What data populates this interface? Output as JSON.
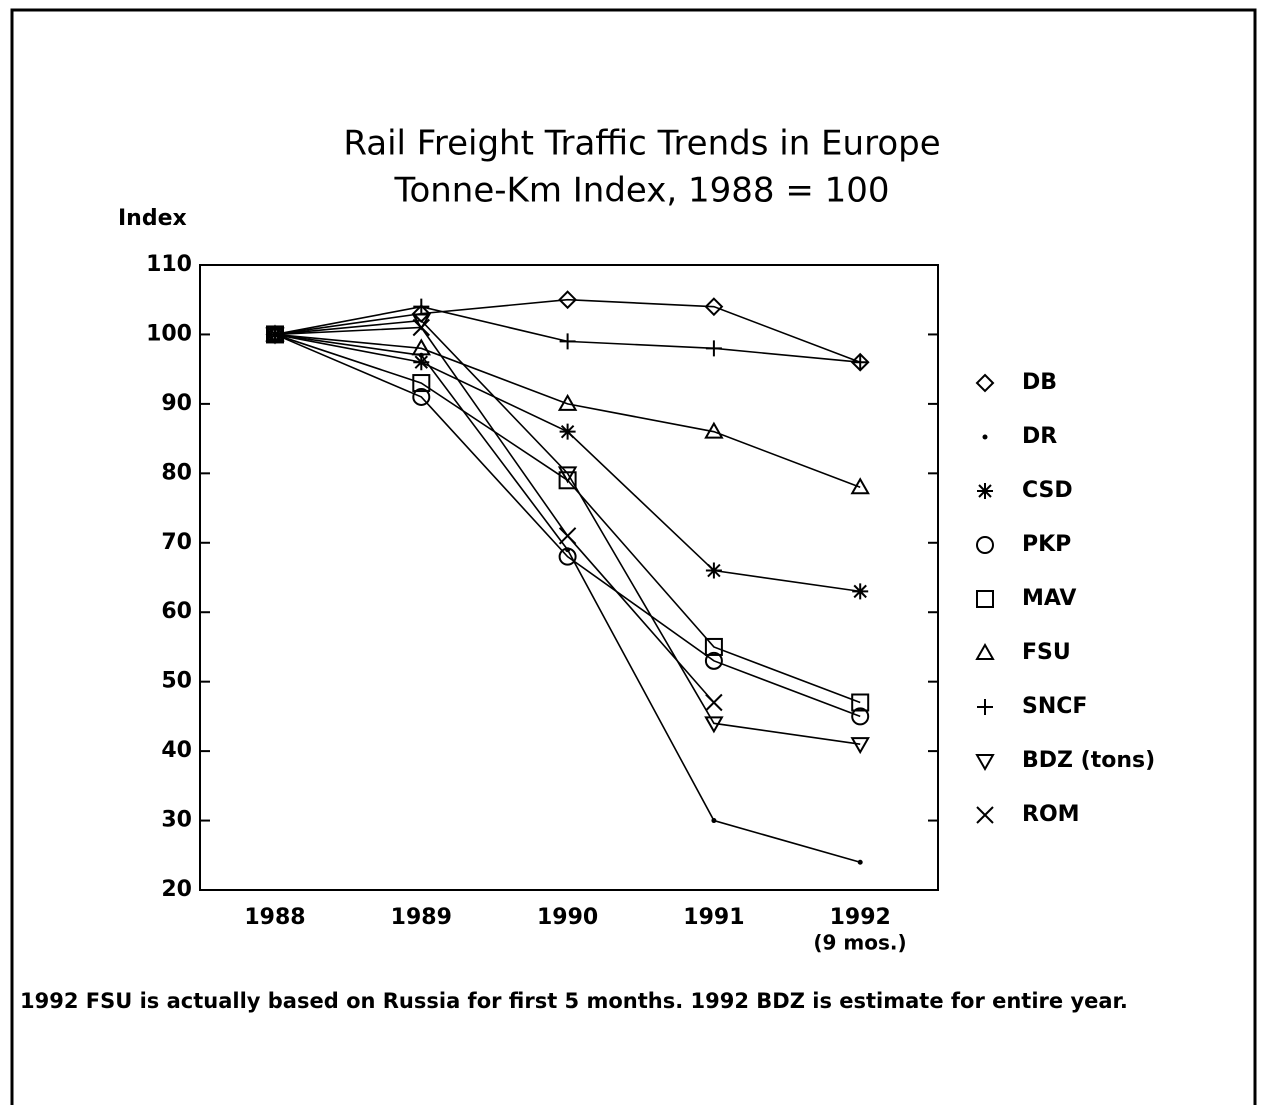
{
  "chart_data": {
    "type": "line",
    "title": "Rail Freight Traffic Trends in Europe",
    "subtitle": "Tonne-Km Index, 1988 = 100",
    "y_label": "Index",
    "categories": [
      "1988",
      "1989",
      "1990",
      "1991",
      "1992"
    ],
    "x_annotation": "(9 mos.)",
    "footnote": "1992 FSU is actually based on Russia for first 5 months.  1992 BDZ is estimate for entire year.",
    "ylim": [
      20,
      110
    ],
    "yticks": [
      20,
      30,
      40,
      50,
      60,
      70,
      80,
      90,
      100,
      110
    ],
    "series": [
      {
        "name": "DB",
        "color": "#000000",
        "marker": "diamond",
        "values": [
          100,
          103,
          105,
          104,
          96
        ]
      },
      {
        "name": "DR",
        "color": "#000000",
        "marker": "dot",
        "values": [
          100,
          97,
          69,
          30,
          24
        ]
      },
      {
        "name": "CSD",
        "color": "#000000",
        "marker": "asterisk",
        "values": [
          100,
          96,
          86,
          66,
          63
        ]
      },
      {
        "name": "PKP",
        "color": "#000000",
        "marker": "circle",
        "values": [
          100,
          91,
          68,
          53,
          45
        ]
      },
      {
        "name": "MAV",
        "color": "#000000",
        "marker": "square",
        "values": [
          100,
          93,
          79,
          55,
          47
        ]
      },
      {
        "name": "FSU",
        "color": "#000000",
        "marker": "triangle",
        "values": [
          100,
          98,
          90,
          86,
          78
        ]
      },
      {
        "name": "SNCF",
        "color": "#000000",
        "marker": "plus",
        "values": [
          100,
          104,
          99,
          98,
          96
        ]
      },
      {
        "name": "BDZ (tons)",
        "color": "#000000",
        "marker": "triangle-down",
        "values": [
          100,
          102,
          80,
          44,
          41
        ]
      },
      {
        "name": "ROM",
        "color": "#000000",
        "marker": "x",
        "values": [
          100,
          101,
          71,
          47,
          null
        ]
      }
    ]
  }
}
